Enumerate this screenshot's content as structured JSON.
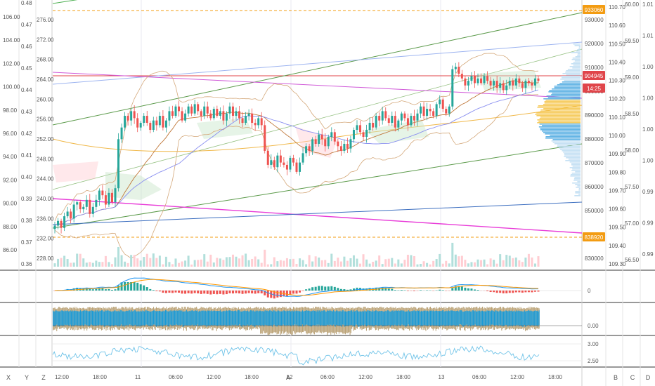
{
  "chart_data": {
    "type": "candlestick",
    "instrument_count": 1,
    "x_tick_labels": [
      "12:00",
      "18:00",
      "11",
      "06:00",
      "12:00",
      "18:00",
      "12",
      "06:00",
      "12:00",
      "18:00",
      "13",
      "06:00",
      "12:00",
      "18:00"
    ],
    "bottom_axis_letters": [
      "X",
      "Y",
      "Z",
      "A",
      "B",
      "C",
      "D"
    ],
    "left_axis_1": [
      "106.00",
      "104.00",
      "102.00",
      "100.00",
      "98.00",
      "96.00",
      "94.00",
      "92.00",
      "90.00",
      "88.00",
      "86.00"
    ],
    "left_axis_2": [
      "0.48",
      "0.47",
      "0.46",
      "0.45",
      "0.44",
      "0.43",
      "0.42",
      "0.41",
      "0.40",
      "0.39",
      "0.38",
      "0.37",
      "0.36"
    ],
    "left_axis_3": [
      "276.00",
      "272.00",
      "268.00",
      "264.00",
      "260.00",
      "256.00",
      "252.00",
      "248.00",
      "244.00",
      "240.00",
      "236.00",
      "232.00",
      "228.00"
    ],
    "right_axis_1": [
      "930000",
      "920000",
      "910000",
      "900000",
      "890000",
      "880000",
      "870000",
      "860000",
      "850000",
      "840000",
      "830000"
    ],
    "right_axis_2": [
      "110.70",
      "110.60",
      "110.50",
      "110.40",
      "110.30",
      "110.20",
      "110.10",
      "110.00",
      "109.90",
      "109.80",
      "109.70",
      "109.60",
      "109.50",
      "109.40",
      "109.30"
    ],
    "right_axis_3": [
      "60.00",
      "59.50",
      "59.00",
      "58.50",
      "58.00",
      "57.50",
      "57.00",
      "56.50"
    ],
    "right_axis_4": [
      "1.01",
      "1.01",
      "1.00",
      "1.00",
      "1.00",
      "1.00",
      "0.99",
      "0.99",
      "0.99"
    ],
    "price_labels": [
      {
        "text": "933060",
        "color": "#f39c12",
        "value": 933060
      },
      {
        "text": "904945",
        "color": "#e0454a",
        "value": 904945
      },
      {
        "text": "14:25",
        "color": "#e0454a"
      },
      {
        "text": "838920",
        "color": "#f39c12",
        "value": 838920
      }
    ],
    "pane_labels": {
      "macd_zero": "0",
      "pane3_zero": "0.00",
      "pane4_upper": "3.00",
      "pane4_lower": "2.50"
    },
    "price_range": [
      825000,
      938000
    ],
    "close_series": [
      842,
      844,
      841,
      846,
      848,
      845,
      851,
      852,
      849,
      850,
      853,
      847,
      850,
      853,
      857,
      855,
      851,
      856,
      852,
      858,
      879,
      884,
      889,
      887,
      891,
      888,
      884,
      886,
      889,
      886,
      883,
      887,
      885,
      889,
      884,
      887,
      891,
      889,
      893,
      891,
      887,
      890,
      893,
      890,
      894,
      891,
      889,
      893,
      890,
      888,
      892,
      889,
      891,
      887,
      890,
      893,
      889,
      891,
      888,
      886,
      889,
      890,
      886,
      885,
      888,
      885,
      874,
      868,
      870,
      867,
      872,
      869,
      868,
      866,
      871,
      869,
      865,
      869,
      873,
      876,
      874,
      879,
      877,
      881,
      879,
      876,
      880,
      882,
      878,
      876,
      874,
      877,
      875,
      879,
      883,
      885,
      882,
      880,
      883,
      886,
      884,
      889,
      887,
      891,
      888,
      886,
      889,
      884,
      887,
      890,
      888,
      885,
      889,
      887,
      890,
      893,
      889,
      892,
      891,
      889,
      894,
      896,
      892,
      890,
      893,
      909,
      910,
      907,
      905,
      902,
      904,
      906,
      903,
      905,
      903,
      906,
      904,
      902,
      904,
      901,
      903,
      900,
      902,
      904,
      902,
      905,
      903,
      901,
      904,
      903,
      902,
      905,
      904
    ],
    "colors": {
      "up": "#26a69a",
      "down": "#ef5350",
      "macd": "#2196f3",
      "signal": "#ff9800",
      "volume_up": "#b2dfdb",
      "volume_down": "#ffcdd2",
      "bar3": "#1a9ad6",
      "bar3_shade": "#9c7a3c",
      "line4": "#6fc3e8",
      "price_line": "#e0454a",
      "marker": "#f39c12"
    }
  }
}
